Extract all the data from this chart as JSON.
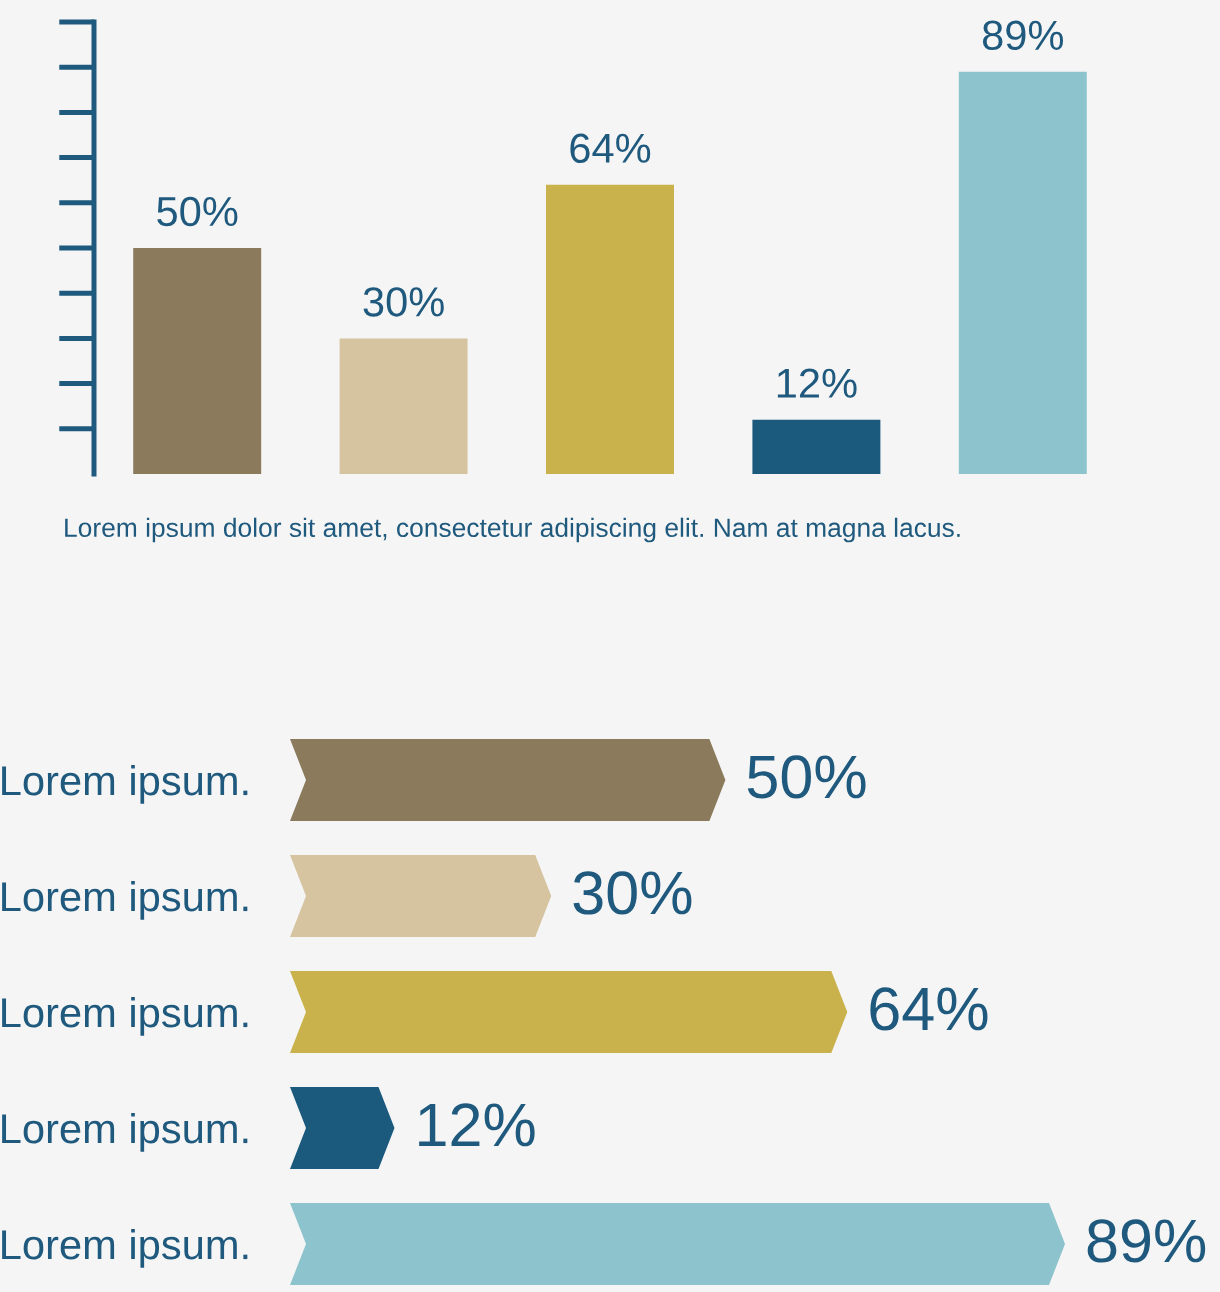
{
  "chart_data": [
    {
      "type": "bar",
      "categories": [
        null,
        null,
        null,
        null,
        null
      ],
      "values": [
        50,
        30,
        64,
        12,
        89
      ],
      "colors": [
        "#8c7a5c",
        "#d6c4a0",
        "#c9b14c",
        "#1b5a7c",
        "#8cc3cc"
      ],
      "value_labels": [
        "50%",
        "30%",
        "64%",
        "12%",
        "89%"
      ],
      "annotations": [
        "Lorem ipsum dolor sit amet, consectetur adipiscing elit. Nam at magna lacus."
      ]
    },
    {
      "type": "bar",
      "orientation": "horizontal",
      "categories": [
        "Lorem ipsum.",
        "Lorem ipsum.",
        "Lorem ipsum.",
        "Lorem ipsum.",
        "Lorem ipsum."
      ],
      "values": [
        50,
        30,
        64,
        12,
        89
      ],
      "colors": [
        "#8c7a5c",
        "#d6c4a0",
        "#c9b14c",
        "#1b5a7c",
        "#8cc3cc"
      ],
      "value_labels": [
        "50%",
        "30%",
        "64%",
        "12%",
        "89%"
      ]
    }
  ]
}
